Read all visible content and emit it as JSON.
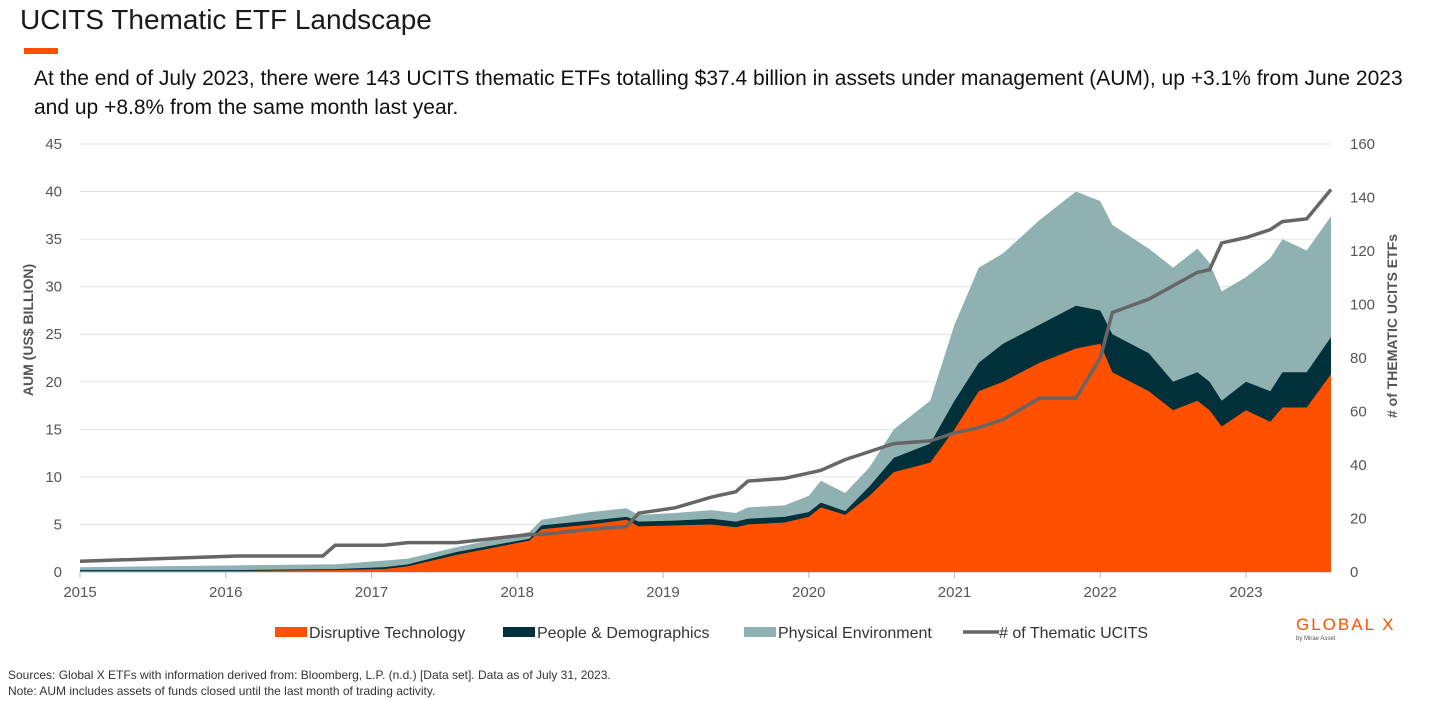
{
  "header": {
    "title": "UCITS Thematic ETF Landscape",
    "subtitle": "At the end of July 2023, there were 143 UCITS thematic ETFs totalling $37.4 billion in assets under management (AUM), up +3.1% from June 2023 and up +8.8% from the same month last year."
  },
  "footer": {
    "sources": "Sources: Global X ETFs with information derived from: Bloomberg, L.P. (n.d.) [Data set]. Data as of July 31, 2023.",
    "note": "Note: AUM includes assets of funds closed until the last month of trading activity."
  },
  "logo": {
    "text": "GLOBAL X",
    "tagline": "by Mirae Asset"
  },
  "colors": {
    "disruptive": "#ff5000",
    "people": "#00303a",
    "physical": "#8fb1b1",
    "count": "#666666",
    "accent": "#ff5000"
  },
  "chart_data": {
    "type": "area",
    "stacked": true,
    "ylabel": "AUM (US$ BILLION)",
    "y2label": "# of THEMATIC UCITS ETFs",
    "ylim": [
      0,
      45
    ],
    "y2lim": [
      0,
      160
    ],
    "yticks": [
      "0",
      "5",
      "10",
      "15",
      "20",
      "25",
      "30",
      "35",
      "40",
      "45"
    ],
    "y2ticks": [
      "0",
      "20",
      "40",
      "60",
      "80",
      "100",
      "120",
      "140",
      "160"
    ],
    "xticks": [
      "2015",
      "2016",
      "2017",
      "2018",
      "2019",
      "2020",
      "2021",
      "2022",
      "2023"
    ],
    "grid": true,
    "legend": "bottom",
    "x": [
      "2015-01",
      "2016-01",
      "2016-08",
      "2016-09",
      "2017-01",
      "2017-03",
      "2017-07",
      "2018-01",
      "2018-02",
      "2018-06",
      "2018-09",
      "2018-10",
      "2019-01",
      "2019-04",
      "2019-06",
      "2019-07",
      "2019-10",
      "2019-12",
      "2020-01",
      "2020-03",
      "2020-05",
      "2020-07",
      "2020-10",
      "2020-12",
      "2021-02",
      "2021-04",
      "2021-07",
      "2021-10",
      "2021-12",
      "2022-01",
      "2022-04",
      "2022-06",
      "2022-08",
      "2022-09",
      "2022-10",
      "2022-12",
      "2023-02",
      "2023-03",
      "2023-05",
      "2023-07"
    ],
    "series": [
      {
        "name": "Disruptive Technology",
        "type": "area",
        "axis": "left",
        "values": [
          0.1,
          0.1,
          0.2,
          0.2,
          0.3,
          0.6,
          1.8,
          3.3,
          4.5,
          5.0,
          5.5,
          4.8,
          4.9,
          5.0,
          4.7,
          5.0,
          5.2,
          5.8,
          6.8,
          6.0,
          8.0,
          10.5,
          11.5,
          15.0,
          19.0,
          20.0,
          22.0,
          23.5,
          24.0,
          21.0,
          19.0,
          17.0,
          18.0,
          17.0,
          15.3,
          17.0,
          15.8,
          17.3,
          17.3,
          20.8
        ]
      },
      {
        "name": "People & Demographics",
        "type": "area",
        "axis": "left",
        "values": [
          0.1,
          0.1,
          0.1,
          0.1,
          0.2,
          0.2,
          0.3,
          0.2,
          0.4,
          0.4,
          0.3,
          0.5,
          0.5,
          0.6,
          0.6,
          0.6,
          0.6,
          0.5,
          0.5,
          0.4,
          1.0,
          1.5,
          2.0,
          3.0,
          3.0,
          4.0,
          4.0,
          4.5,
          3.5,
          4.0,
          4.0,
          3.0,
          3.0,
          3.0,
          2.7,
          3.0,
          3.2,
          3.7,
          3.7,
          3.9
        ]
      },
      {
        "name": "Physical Environment",
        "type": "area",
        "axis": "left",
        "values": [
          0.3,
          0.5,
          0.5,
          0.5,
          0.7,
          0.6,
          0.5,
          0.7,
          0.6,
          0.9,
          0.9,
          0.7,
          0.8,
          0.9,
          0.9,
          1.2,
          1.2,
          1.7,
          2.3,
          1.9,
          2.0,
          3.0,
          4.5,
          8.0,
          10.0,
          9.5,
          11.0,
          12.0,
          11.5,
          11.5,
          11.0,
          12.0,
          13.0,
          12.5,
          11.5,
          11.0,
          14.0,
          14.0,
          12.8,
          12.7
        ]
      },
      {
        "name": "# of Thematic UCITS",
        "type": "line",
        "axis": "right",
        "values": [
          4,
          6,
          6,
          10,
          10,
          11,
          11,
          14,
          14,
          16,
          17,
          22,
          24,
          28,
          30,
          34,
          35,
          37,
          38,
          42,
          45,
          48,
          49,
          52,
          54,
          57,
          65,
          65,
          80,
          97,
          102,
          107,
          112,
          113,
          123,
          125,
          128,
          131,
          132,
          143
        ]
      }
    ]
  }
}
